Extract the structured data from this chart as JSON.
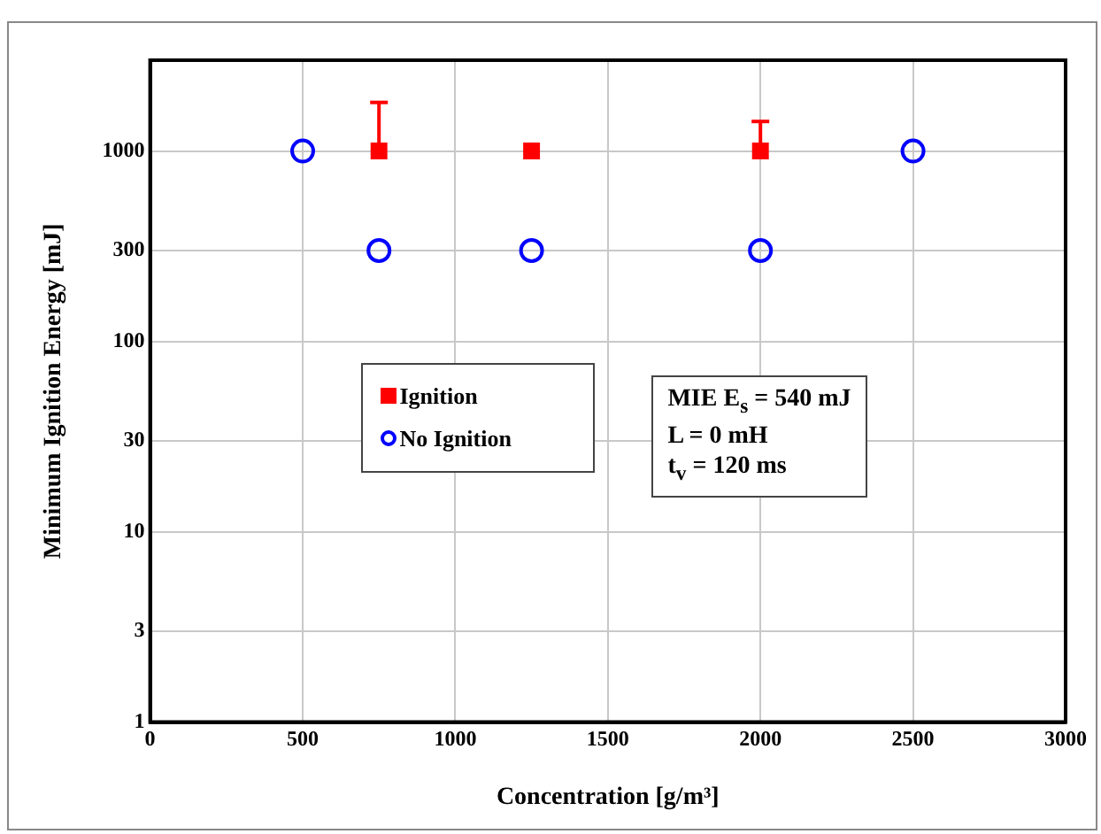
{
  "chart_data": {
    "type": "scatter",
    "xlabel": "Concentration [g/m³]",
    "ylabel": "Minimum Ignition Energy [mJ]",
    "xlim": [
      0,
      3000
    ],
    "xticks": [
      0,
      500,
      1000,
      1500,
      2000,
      2500,
      3000
    ],
    "ylim": [
      1,
      3000
    ],
    "yticks": [
      1,
      3,
      10,
      30,
      100,
      300,
      1000
    ],
    "log": "y",
    "grid": true,
    "legend": "center left",
    "series": [
      {
        "name": "Ignition",
        "color": "#ff0000",
        "marker": "square",
        "x": [
          750,
          1250,
          2000
        ],
        "values": [
          1000,
          1000,
          1000
        ],
        "errors": [
          [
            1000,
            1800
          ],
          null,
          [
            1000,
            1430
          ]
        ]
      },
      {
        "name": "No Ignition",
        "color": "#0000ff",
        "marker": "circle",
        "x": [
          500,
          750,
          1250,
          2000,
          2500
        ],
        "values": [
          1000,
          300,
          300,
          300,
          1000
        ]
      }
    ],
    "annotations": [
      "MIE E$_{s}$ = 540 mJ",
      "L = 0 mH",
      "t$_{v}$ = 120 ms"
    ]
  }
}
